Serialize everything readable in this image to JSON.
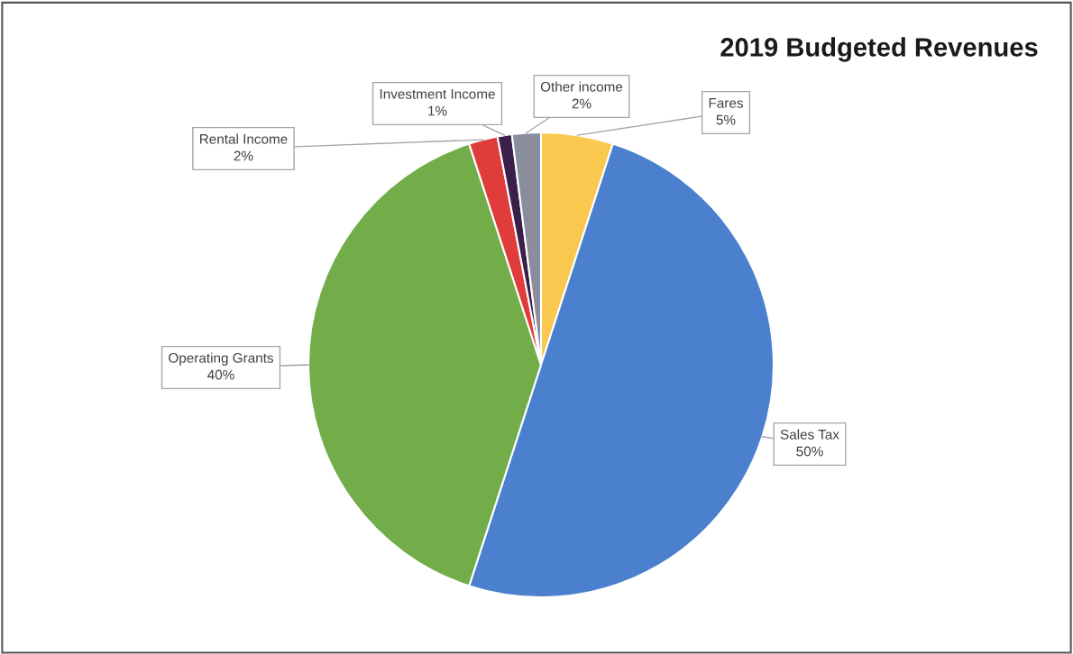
{
  "chart_data": {
    "type": "pie",
    "title": "2019 Budgeted Revenues",
    "categories": [
      "Fares",
      "Sales Tax",
      "Operating Grants",
      "Rental Income",
      "Investment Income",
      "Other income"
    ],
    "values": [
      5,
      50,
      40,
      2,
      1,
      2
    ],
    "colors": [
      "#fac84e",
      "#4a80cd",
      "#72ad4a",
      "#e03c3c",
      "#3a1f4a",
      "#8a8e9c"
    ],
    "value_labels": [
      "5%",
      "50%",
      "40%",
      "2%",
      "1%",
      "2%"
    ],
    "legend": false
  }
}
